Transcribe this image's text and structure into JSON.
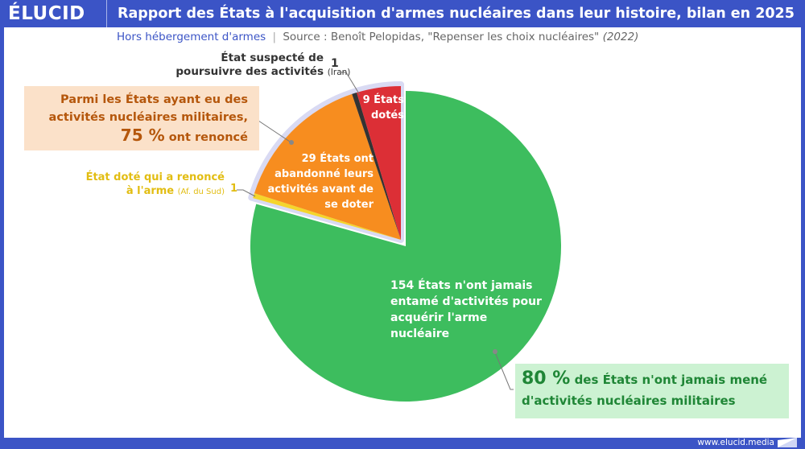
{
  "header": {
    "logo": "ÉLUCID",
    "title": "Rapport des États à l'acquisition d'armes nucléaires dans leur histoire, bilan en 2025"
  },
  "subtitle": {
    "note": "Hors hébergement d'armes",
    "divider": "|",
    "source": "Source : Benoît Pelopidas, \"Repenser les choix nucléaires\"",
    "year": "(2022)"
  },
  "footer": {
    "url": "www.elucid.media"
  },
  "chart_data": {
    "type": "pie",
    "start": "12 o'clock, clockwise",
    "slices": [
      {
        "label": "154 États n'ont jamais entamé d'activités pour acquérir l'arme nucléaire",
        "value": 154,
        "color": "#3dbd5e"
      },
      {
        "label": "État doté qui a renoncé à l'arme",
        "value": 1,
        "color": "#f5d52c",
        "exploded": true
      },
      {
        "label": "29 États ont abandonné leurs activités avant de se doter",
        "value": 29,
        "color": "#f78d1f",
        "exploded": true
      },
      {
        "label": "État suspecté de poursuivre des activités",
        "value": 1,
        "color": "#333333",
        "exploded": true
      },
      {
        "label": "9 États dotés",
        "value": 9,
        "color": "#dc2f36",
        "exploded": true
      }
    ],
    "annotations": {
      "green_slice": "154 États n'ont jamais entamé d'activités pour acquérir l'arme nucléaire",
      "orange_slice": "29 États ont abandonné leurs activités avant de se doter",
      "red_slice": "9 États dotés",
      "iran_label": "État suspecté de poursuivre des activités",
      "iran_note": "(Iran)",
      "iran_value": "1",
      "sa_label": "État doté qui a renoncé à l'arme",
      "sa_note": "(Af. du Sud)",
      "sa_value": "1",
      "orange_callout_line1": "Parmi les États ayant eu des activités nucléaires militaires,",
      "orange_callout_pct": "75 %",
      "orange_callout_rest": "ont renoncé",
      "green_callout_pct": "80 %",
      "green_callout_rest": "des États n'ont jamais mené d'activités nucléaires militaires"
    }
  }
}
